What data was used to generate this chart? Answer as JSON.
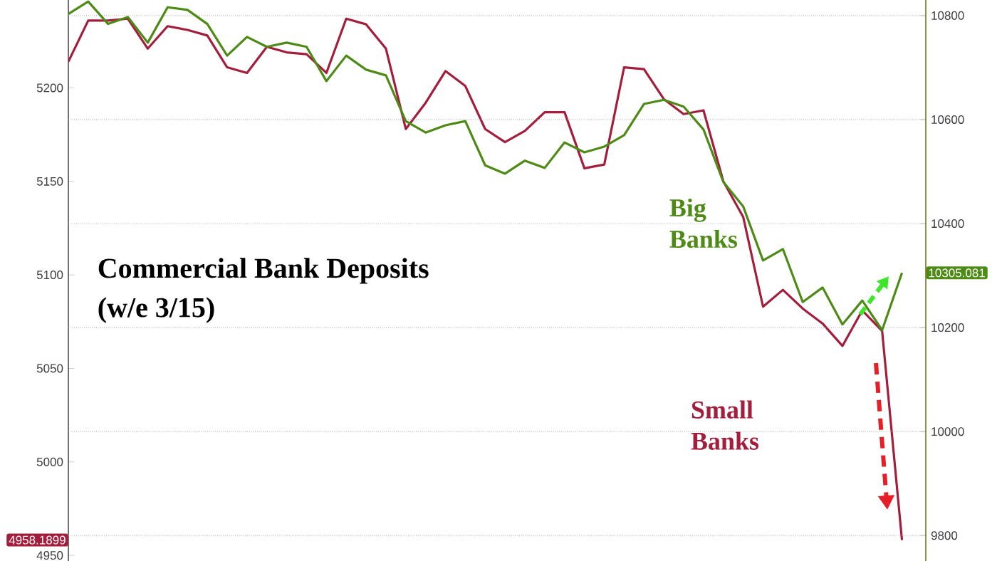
{
  "chart_data": {
    "type": "line",
    "title": "Commercial Bank Deposits",
    "subtitle": "(w/e 3/15)",
    "categories": [
      null,
      null,
      null,
      null,
      null,
      null,
      null,
      null,
      null,
      null,
      null,
      null,
      null,
      null,
      null,
      null,
      null,
      null,
      null,
      null,
      null,
      null,
      null,
      null,
      null,
      null,
      null,
      null,
      null,
      null,
      null,
      null,
      null,
      null,
      null,
      null,
      null,
      null,
      null,
      null,
      null,
      null,
      null
    ],
    "ylim": [
      4947,
      5247
    ],
    "yticks": [
      4950,
      5000,
      5050,
      5100,
      5150,
      5200
    ],
    "y2lim": [
      9751,
      10830
    ],
    "y2ticks": [
      9800,
      10000,
      10200,
      10400,
      10600,
      10800
    ],
    "grid": "y",
    "annotations": [
      "4958.1899",
      "10305.081"
    ],
    "legend": false,
    "marker": "none",
    "line_style": "solid",
    "series": [
      {
        "name": "Small Banks",
        "color": "#a31d3c",
        "values": [
          5214,
          5236,
          5236,
          5237,
          5221,
          5233,
          5231,
          5228,
          5211,
          5208,
          5222,
          5219,
          5218,
          5208,
          5237,
          5234,
          5221,
          5178,
          5192,
          5209,
          5201,
          5178,
          5171,
          5177,
          5187,
          5187,
          5157,
          5159,
          5211,
          5210,
          5194,
          5186,
          5188,
          5150,
          5131,
          5083,
          5092,
          5082,
          5074,
          5062,
          5081,
          5070,
          4958.1899
        ]
      },
      {
        "name": "Big Banks",
        "color": "#4e8a16",
        "axis": "y2",
        "values": [
          10803,
          10827,
          10784,
          10797,
          10748,
          10816,
          10811,
          10784,
          10723,
          10759,
          10740,
          10748,
          10740,
          10674,
          10723,
          10696,
          10685,
          10597,
          10575,
          10589,
          10597,
          10512,
          10496,
          10521,
          10507,
          10556,
          10537,
          10548,
          10570,
          10630,
          10638,
          10625,
          10581,
          10480,
          10433,
          10329,
          10351,
          10249,
          10277,
          10206,
          10252,
          10195,
          10305.081
        ]
      }
    ]
  }
}
